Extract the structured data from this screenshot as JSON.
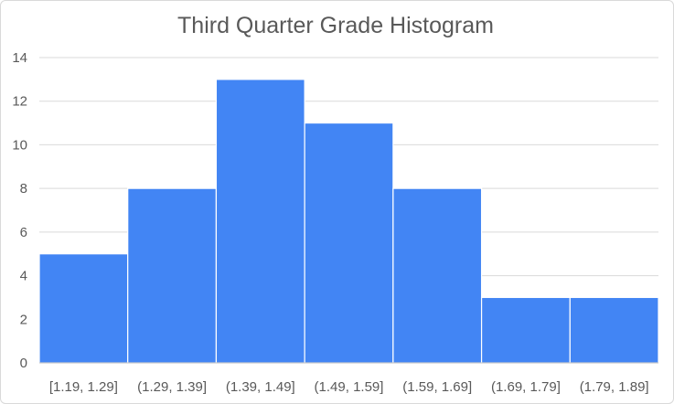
{
  "chart_data": {
    "type": "bar",
    "title": "Third Quarter Grade Histogram",
    "xlabel": "",
    "ylabel": "",
    "categories": [
      "[1.19, 1.29]",
      "(1.29, 1.39]",
      "(1.39, 1.49]",
      "(1.49, 1.59]",
      "(1.59, 1.69]",
      "(1.69, 1.79]",
      "(1.79, 1.89]"
    ],
    "values": [
      5,
      8,
      13,
      11,
      8,
      3,
      3
    ],
    "ylim": [
      0,
      14
    ],
    "yticks": [
      0,
      2,
      4,
      6,
      8,
      10,
      12,
      14
    ],
    "grid": true,
    "legend": "none",
    "bar_color": "#4285f4",
    "bar_gap": 0
  }
}
